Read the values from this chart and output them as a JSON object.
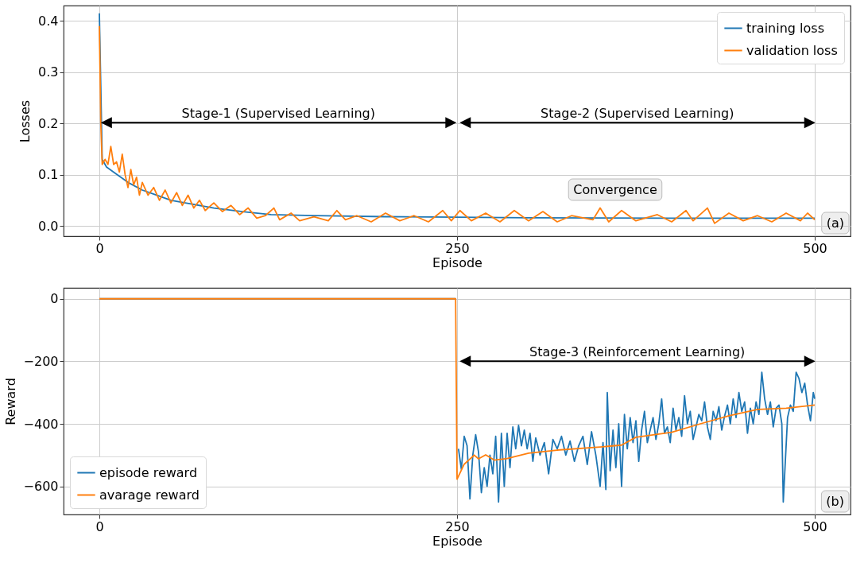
{
  "chart_data": [
    {
      "type": "line",
      "xlabel": "Episode",
      "ylabel": "Losses",
      "xlim": [
        -25,
        525
      ],
      "ylim": [
        -0.02,
        0.43
      ],
      "xticks": [
        0,
        250,
        500
      ],
      "yticks": [
        {
          "value": 0,
          "label": "0.0"
        },
        0.1,
        0.2,
        0.3,
        0.4
      ],
      "grid": true,
      "legend": "top right",
      "series": [
        {
          "name": "training loss",
          "color": "#1f77b4",
          "x": [
            0,
            2,
            5,
            10,
            20,
            30,
            40,
            50,
            60,
            80,
            100,
            120,
            150,
            200,
            250,
            300,
            400,
            500
          ],
          "values": [
            0.415,
            0.13,
            0.115,
            0.105,
            0.085,
            0.07,
            0.06,
            0.05,
            0.045,
            0.035,
            0.028,
            0.022,
            0.02,
            0.018,
            0.017,
            0.016,
            0.015,
            0.015
          ]
        },
        {
          "name": "validation loss",
          "color": "#ff7f0e",
          "x": [
            0,
            1,
            2,
            4,
            6,
            8,
            10,
            12,
            14,
            16,
            18,
            20,
            22,
            24,
            26,
            28,
            30,
            34,
            38,
            42,
            46,
            50,
            54,
            58,
            62,
            66,
            70,
            74,
            80,
            86,
            92,
            98,
            104,
            110,
            116,
            122,
            126,
            134,
            140,
            150,
            160,
            166,
            172,
            180,
            190,
            200,
            210,
            220,
            230,
            240,
            246,
            252,
            260,
            270,
            280,
            290,
            300,
            310,
            320,
            330,
            345,
            350,
            356,
            365,
            375,
            390,
            400,
            410,
            415,
            425,
            430,
            440,
            450,
            460,
            470,
            480,
            490,
            495,
            500
          ],
          "values": [
            0.39,
            0.2,
            0.12,
            0.13,
            0.12,
            0.155,
            0.12,
            0.125,
            0.105,
            0.14,
            0.1,
            0.075,
            0.11,
            0.08,
            0.095,
            0.06,
            0.085,
            0.06,
            0.075,
            0.05,
            0.07,
            0.045,
            0.065,
            0.04,
            0.06,
            0.035,
            0.05,
            0.03,
            0.045,
            0.028,
            0.04,
            0.022,
            0.035,
            0.015,
            0.02,
            0.035,
            0.012,
            0.025,
            0.01,
            0.018,
            0.01,
            0.03,
            0.012,
            0.02,
            0.008,
            0.025,
            0.01,
            0.02,
            0.008,
            0.03,
            0.01,
            0.03,
            0.01,
            0.025,
            0.008,
            0.03,
            0.01,
            0.028,
            0.008,
            0.02,
            0.012,
            0.035,
            0.008,
            0.03,
            0.01,
            0.022,
            0.008,
            0.03,
            0.01,
            0.035,
            0.005,
            0.025,
            0.01,
            0.02,
            0.008,
            0.025,
            0.01,
            0.025,
            0.012
          ]
        }
      ],
      "annotations": [
        "Stage-1 (Supervised Learning)",
        "Stage-2 (Supervised Learning)",
        "Convergence",
        "(a)"
      ]
    },
    {
      "type": "line",
      "xlabel": "Episode",
      "ylabel": "Reward",
      "xlim": [
        -25,
        525
      ],
      "ylim": [
        -690,
        35
      ],
      "xticks": [
        0,
        250,
        500
      ],
      "yticks": [
        0,
        {
          "value": -200,
          "label": "−200"
        },
        {
          "value": -400,
          "label": "−400"
        },
        {
          "value": -600,
          "label": "−600"
        }
      ],
      "grid": true,
      "legend": "bottom left",
      "series": [
        {
          "name": "episode reward",
          "color": "#1f77b4",
          "x": [
            0,
            249,
            250,
            251,
            253,
            255,
            257,
            259,
            261,
            263,
            265,
            267,
            269,
            271,
            273,
            275,
            277,
            279,
            281,
            283,
            285,
            287,
            289,
            291,
            293,
            295,
            297,
            299,
            301,
            303,
            305,
            308,
            311,
            314,
            317,
            320,
            323,
            326,
            329,
            332,
            335,
            338,
            341,
            344,
            347,
            350,
            352,
            354,
            355,
            357,
            359,
            361,
            363,
            365,
            367,
            369,
            371,
            373,
            375,
            377,
            379,
            381,
            383,
            385,
            387,
            389,
            391,
            393,
            395,
            397,
            399,
            401,
            403,
            405,
            407,
            409,
            411,
            413,
            415,
            417,
            419,
            421,
            423,
            425,
            427,
            429,
            431,
            433,
            435,
            437,
            439,
            441,
            443,
            445,
            447,
            449,
            451,
            453,
            455,
            457,
            459,
            461,
            463,
            465,
            467,
            469,
            471,
            473,
            475,
            477,
            478,
            481,
            483,
            485,
            487,
            489,
            491,
            493,
            495,
            497,
            499,
            500
          ],
          "values": [
            0,
            0,
            null,
            -480,
            -545,
            -440,
            -470,
            -640,
            -500,
            -435,
            -490,
            -620,
            -540,
            -600,
            -500,
            -560,
            -440,
            -650,
            -430,
            -600,
            -430,
            -540,
            -410,
            -480,
            -405,
            -470,
            -420,
            -480,
            -430,
            -520,
            -445,
            -500,
            -460,
            -560,
            -450,
            -480,
            -440,
            -500,
            -455,
            -520,
            -470,
            -440,
            -530,
            -425,
            -500,
            -600,
            -460,
            -610,
            -300,
            -550,
            -420,
            -540,
            -400,
            -600,
            -370,
            -480,
            -380,
            -460,
            -390,
            -520,
            -420,
            -360,
            -460,
            -420,
            -380,
            -450,
            -400,
            -320,
            -430,
            -410,
            -460,
            -350,
            -420,
            -380,
            -440,
            -310,
            -400,
            -360,
            -450,
            -410,
            -370,
            -390,
            -330,
            -410,
            -450,
            -360,
            -390,
            -345,
            -420,
            -375,
            -340,
            -400,
            -320,
            -380,
            -300,
            -360,
            -330,
            -430,
            -350,
            -400,
            -330,
            -370,
            -235,
            -320,
            -370,
            -330,
            -410,
            -350,
            -340,
            -400,
            -650,
            -380,
            -340,
            -360,
            -235,
            -255,
            -300,
            -270,
            -340,
            -390,
            -300,
            -320
          ]
        },
        {
          "name": "avarage reward",
          "color": "#ff7f0e",
          "x": [
            0,
            249,
            250,
            255,
            262,
            265,
            270,
            276,
            285,
            300,
            320,
            350,
            365,
            375,
            400,
            420,
            440,
            460,
            480,
            500
          ],
          "values": [
            0,
            0,
            -577,
            -529,
            -500,
            -512,
            -499,
            -516,
            -511,
            -494,
            -484,
            -474,
            -468,
            -443,
            -427,
            -400,
            -374,
            -354,
            -350,
            -340
          ]
        }
      ],
      "annotations": [
        "Stage-3 (Reinforcement Learning)",
        "(b)"
      ]
    }
  ]
}
